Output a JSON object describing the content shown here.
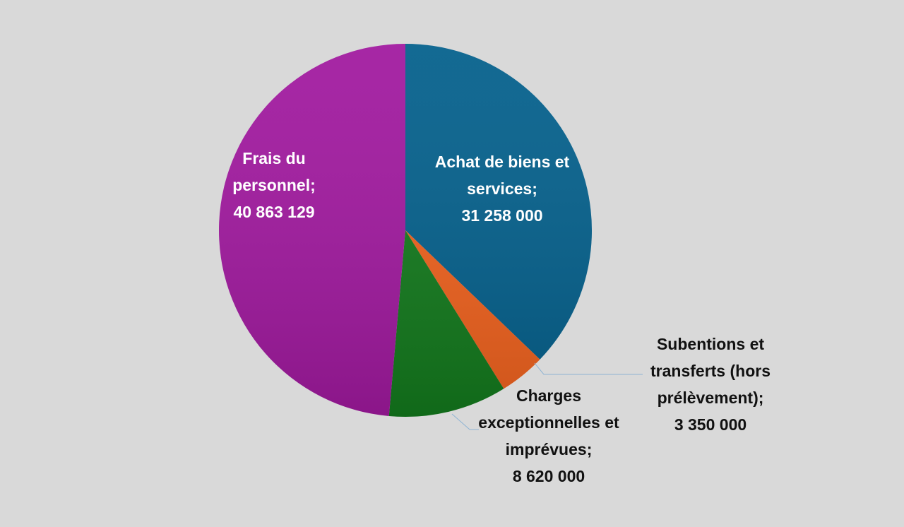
{
  "chart_data": {
    "type": "pie",
    "categories": [
      "Achat de biens et services",
      "Subentions et transferts (hors prélèvement)",
      "Charges exceptionnelles et imprévues",
      "Frais du personnel"
    ],
    "values": [
      31258000,
      3350000,
      8620000,
      40863129
    ],
    "value_labels": [
      "31 258 000",
      "3 350 000",
      "8 620 000",
      "40 863 129"
    ],
    "label_separator": ";",
    "colors": [
      "#04608c",
      "#f0621e",
      "#137a1d",
      "#a1199f"
    ]
  }
}
